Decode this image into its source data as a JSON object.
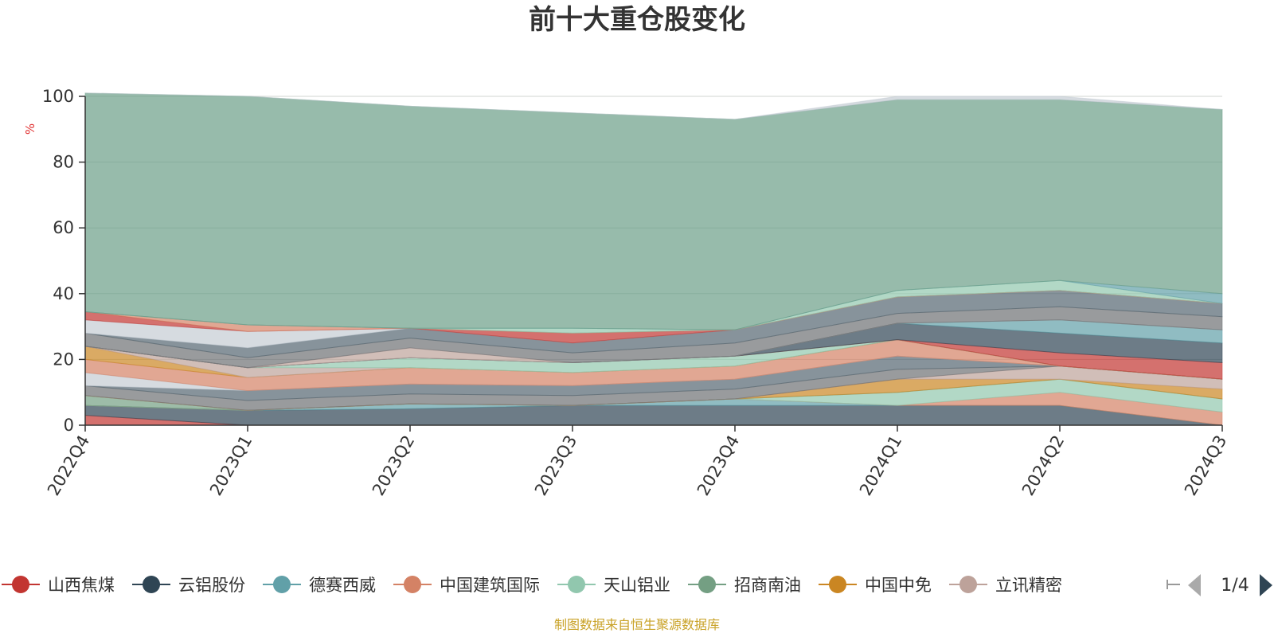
{
  "chart_data": {
    "type": "area",
    "stacked": true,
    "title": "前十大重仓股变化",
    "ylabel": "%",
    "ylim": [
      0,
      100
    ],
    "yticks": [
      0,
      20,
      40,
      60,
      80,
      100
    ],
    "grid": true,
    "categories": [
      "2022Q4",
      "2023Q1",
      "2023Q2",
      "2023Q3",
      "2023Q4",
      "2024Q1",
      "2024Q2",
      "2024Q3"
    ],
    "series": [
      {
        "name": "山西焦煤",
        "color": "#c23531",
        "values": [
          3,
          0,
          0,
          0,
          0,
          0,
          0,
          0
        ]
      },
      {
        "name": "云铝股份",
        "color": "#2f4554",
        "values": [
          3,
          4.5,
          5,
          6,
          6,
          6,
          6,
          0
        ]
      },
      {
        "name": "德赛西威",
        "color": "#61a0a8",
        "values": [
          0,
          0,
          1.5,
          0,
          2,
          0,
          0,
          0
        ]
      },
      {
        "name": "中国建筑国际",
        "color": "#d48265",
        "values": [
          0,
          0,
          0,
          0,
          0,
          0,
          4,
          4
        ]
      },
      {
        "name": "天山铝业",
        "color": "#91c7ae",
        "values": [
          0,
          0,
          0,
          0,
          0,
          4,
          4,
          4
        ]
      },
      {
        "name": "招商南油",
        "color": "#749f83",
        "values": [
          3,
          0,
          0,
          0,
          0,
          0,
          0,
          0
        ]
      },
      {
        "name": "中国中免",
        "color": "#ca8622",
        "values": [
          0,
          0,
          0,
          0,
          0,
          4,
          0,
          3
        ]
      },
      {
        "name": "立讯精密",
        "color": "#bda29a",
        "values": [
          0,
          0,
          0,
          0,
          0,
          0,
          4,
          3
        ]
      },
      {
        "name": "",
        "color": "#6e7074",
        "values": [
          3,
          3,
          3,
          3,
          3,
          3,
          0,
          0
        ]
      },
      {
        "name": "",
        "color": "#546570",
        "values": [
          0,
          3,
          3,
          3,
          3,
          4,
          0,
          0
        ]
      },
      {
        "name": "",
        "color": "#c4ccd3",
        "values": [
          4,
          0,
          0,
          0,
          0,
          0,
          0,
          0
        ]
      },
      {
        "name": "",
        "color": "#d48265",
        "values": [
          4,
          4,
          5,
          4,
          4,
          5,
          0,
          0
        ]
      },
      {
        "name": "",
        "color": "#ca8622",
        "values": [
          4,
          0,
          0,
          0,
          0,
          0,
          0,
          0
        ]
      },
      {
        "name": "",
        "color": "#bda29a",
        "values": [
          0,
          3,
          0,
          0,
          0,
          0,
          0,
          0
        ]
      },
      {
        "name": "",
        "color": "#91c7ae",
        "values": [
          0,
          0,
          3,
          3,
          3,
          0,
          0,
          0
        ]
      },
      {
        "name": "",
        "color": "#c23531",
        "values": [
          0,
          0,
          0,
          0,
          0,
          0,
          4,
          5
        ]
      },
      {
        "name": "",
        "color": "#2f4554",
        "values": [
          0,
          0,
          0,
          0,
          0,
          5,
          6,
          6
        ]
      },
      {
        "name": "",
        "color": "#61a0a8",
        "values": [
          0,
          0,
          0,
          0,
          0,
          0,
          4,
          4
        ]
      },
      {
        "name": "",
        "color": "#bda29a",
        "values": [
          0,
          0,
          3,
          0,
          0,
          0,
          0,
          0
        ]
      },
      {
        "name": "",
        "color": "#6e7074",
        "values": [
          4,
          3,
          3,
          3,
          4,
          3,
          4,
          4
        ]
      },
      {
        "name": "",
        "color": "#546570",
        "values": [
          0,
          3,
          3,
          3,
          4,
          5,
          5,
          4
        ]
      },
      {
        "name": "",
        "color": "#c4ccd3",
        "values": [
          4,
          5,
          0,
          0,
          0,
          0,
          0,
          0
        ]
      },
      {
        "name": "",
        "color": "#c23531",
        "values": [
          2.5,
          0,
          0,
          3,
          0,
          0,
          0,
          0
        ]
      },
      {
        "name": "",
        "color": "#d48265",
        "values": [
          0,
          2,
          0,
          0,
          0,
          0,
          0,
          0
        ]
      },
      {
        "name": "",
        "color": "#91c7ae",
        "values": [
          0,
          0,
          0,
          1.5,
          0,
          2,
          3,
          0
        ]
      },
      {
        "name": "",
        "color": "#61a0a8",
        "values": [
          0,
          0,
          0,
          0,
          0,
          0,
          0,
          3
        ]
      },
      {
        "name": "",
        "color": "#6b9e87",
        "values": [
          66.5,
          69.5,
          67.5,
          65.5,
          64,
          58,
          55,
          56
        ]
      },
      {
        "name": "",
        "color": "#c4ccd3",
        "values": [
          0,
          0,
          0,
          0,
          0,
          1,
          1,
          0
        ]
      }
    ],
    "legend": {
      "placement": "bottom",
      "items": [
        "山西焦煤",
        "云铝股份",
        "德赛西威",
        "中国建筑国际",
        "天山铝业",
        "招商南油",
        "中国中免",
        "立讯精密"
      ],
      "colors": [
        "#c23531",
        "#2f4554",
        "#61a0a8",
        "#d48265",
        "#91c7ae",
        "#749f83",
        "#ca8622",
        "#bda29a"
      ],
      "page": "1/4"
    },
    "source": "制图数据来自恒生聚源数据库"
  }
}
